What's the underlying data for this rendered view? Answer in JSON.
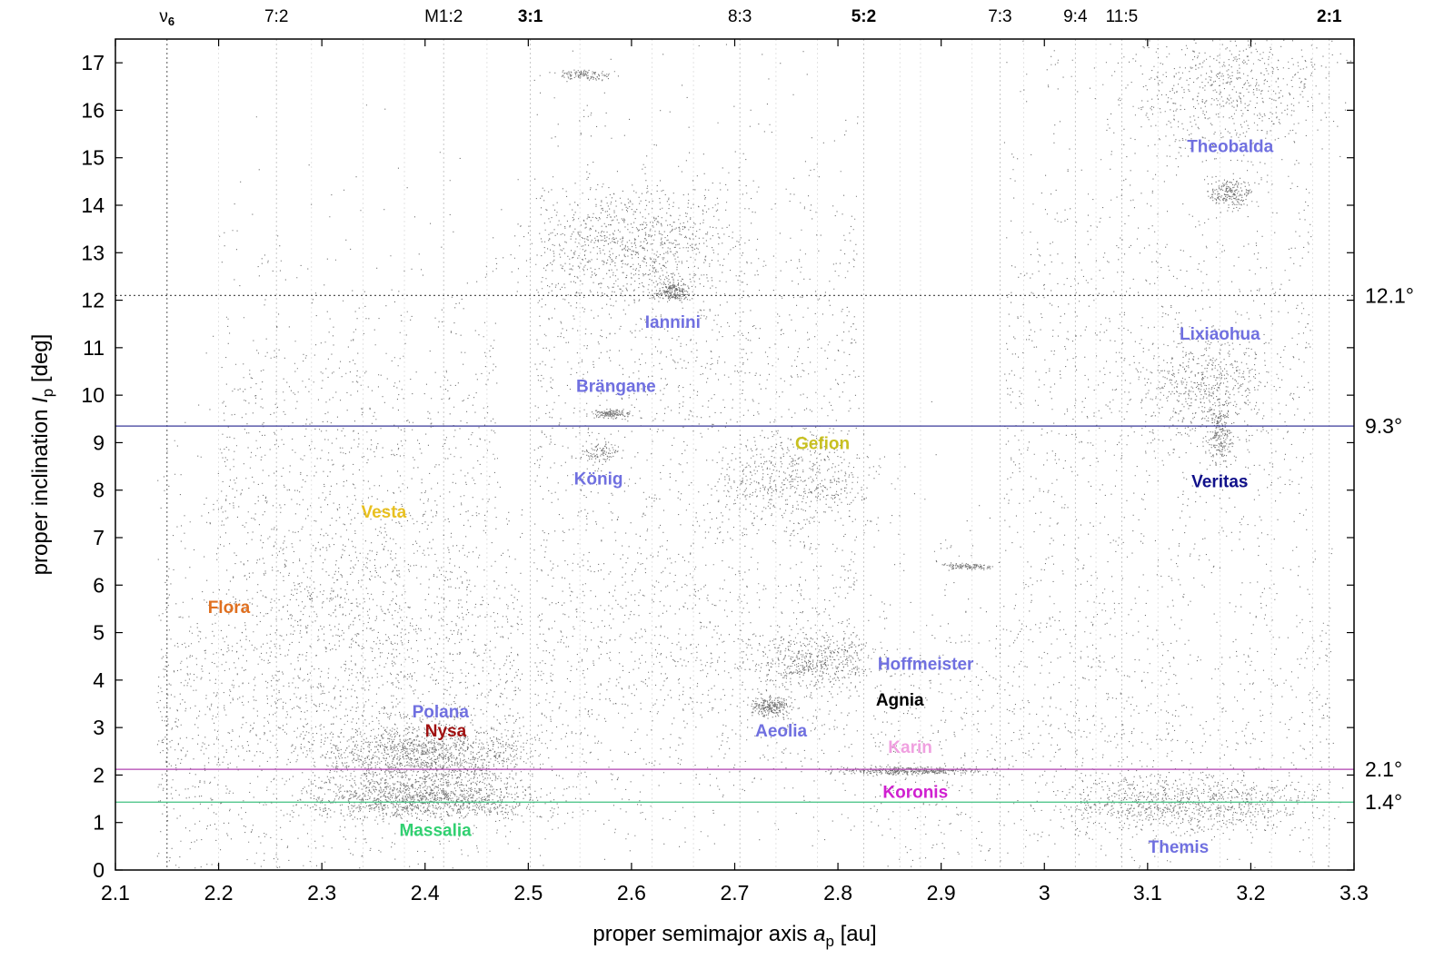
{
  "chart_data": {
    "type": "scatter",
    "xlabel_prefix": "proper semimajor axis ",
    "xlabel_var": "a",
    "xlabel_sub": "p",
    "xlabel_suffix": " [au]",
    "ylabel_prefix": "proper inclination ",
    "ylabel_var": "I",
    "ylabel_sub": "p",
    "ylabel_suffix": " [deg]",
    "xlim": [
      2.1,
      3.3
    ],
    "ylim": [
      0,
      17.5
    ],
    "xticks": [
      "2.1",
      "2.2",
      "2.3",
      "2.4",
      "2.5",
      "2.6",
      "2.7",
      "2.8",
      "2.9",
      "3",
      "3.1",
      "3.2",
      "3.3"
    ],
    "yticks": [
      "0",
      "1",
      "2",
      "3",
      "4",
      "5",
      "6",
      "7",
      "8",
      "9",
      "10",
      "11",
      "12",
      "13",
      "14",
      "15",
      "16",
      "17"
    ],
    "resonances": [
      {
        "label": "ν",
        "sub": "6",
        "a": 2.15,
        "bold": false
      },
      {
        "label": "7:2",
        "a": 2.256,
        "bold": false
      },
      {
        "label": "M1:2",
        "a": 2.418,
        "bold": false
      },
      {
        "label": "3:1",
        "a": 2.502,
        "bold": true
      },
      {
        "label": "8:3",
        "a": 2.705,
        "bold": false
      },
      {
        "label": "5:2",
        "a": 2.825,
        "bold": true
      },
      {
        "label": "7:3",
        "a": 2.957,
        "bold": false
      },
      {
        "label": "9:4",
        "a": 3.03,
        "bold": false
      },
      {
        "label": "11:5",
        "a": 3.075,
        "bold": false
      },
      {
        "label": "2:1",
        "a": 3.276,
        "bold": true
      }
    ],
    "horizontal_lines": [
      {
        "label": "12.1°",
        "value": 12.1,
        "color": "#555555",
        "style": "dotted"
      },
      {
        "label": "9.3°",
        "value": 9.35,
        "color": "#3a3a9a",
        "style": "solid"
      },
      {
        "label": "2.1°",
        "value": 2.12,
        "color": "#b040b0",
        "style": "solid"
      },
      {
        "label": "1.4°",
        "value": 1.43,
        "color": "#40c080",
        "style": "solid"
      }
    ],
    "families": [
      {
        "name": "Flora",
        "a": 2.21,
        "i": 5.55,
        "color": "#e07020"
      },
      {
        "name": "Vesta",
        "a": 2.36,
        "i": 7.55,
        "color": "#e8c020"
      },
      {
        "name": "Polana",
        "a": 2.415,
        "i": 3.35,
        "color": "#7070e0"
      },
      {
        "name": "Nysa",
        "a": 2.42,
        "i": 2.95,
        "color": "#a01010"
      },
      {
        "name": "Massalia",
        "a": 2.41,
        "i": 0.85,
        "color": "#30d070"
      },
      {
        "name": "Brängane",
        "a": 2.585,
        "i": 10.2,
        "color": "#7070e0"
      },
      {
        "name": "König",
        "a": 2.568,
        "i": 8.25,
        "color": "#7070e0"
      },
      {
        "name": "Iannini",
        "a": 2.64,
        "i": 11.55,
        "color": "#7070e0"
      },
      {
        "name": "Gefion",
        "a": 2.785,
        "i": 9.0,
        "color": "#c8c020"
      },
      {
        "name": "Aeolia",
        "a": 2.745,
        "i": 2.95,
        "color": "#7070e0"
      },
      {
        "name": "Hoffmeister",
        "a": 2.885,
        "i": 4.35,
        "color": "#7070e0"
      },
      {
        "name": "Agnia",
        "a": 2.86,
        "i": 3.6,
        "color": "#000000"
      },
      {
        "name": "Karin",
        "a": 2.87,
        "i": 2.6,
        "color": "#f0a0e0"
      },
      {
        "name": "Koronis",
        "a": 2.875,
        "i": 1.65,
        "color": "#d020d0"
      },
      {
        "name": "Theobalda",
        "a": 3.18,
        "i": 15.25,
        "color": "#7070e0"
      },
      {
        "name": "Lixiaohua",
        "a": 3.17,
        "i": 11.3,
        "color": "#7070e0"
      },
      {
        "name": "Veritas",
        "a": 3.17,
        "i": 8.2,
        "color": "#10108a"
      },
      {
        "name": "Themis",
        "a": 3.13,
        "i": 0.5,
        "color": "#7070e0"
      }
    ],
    "grid": false,
    "point_color": "#444444"
  }
}
